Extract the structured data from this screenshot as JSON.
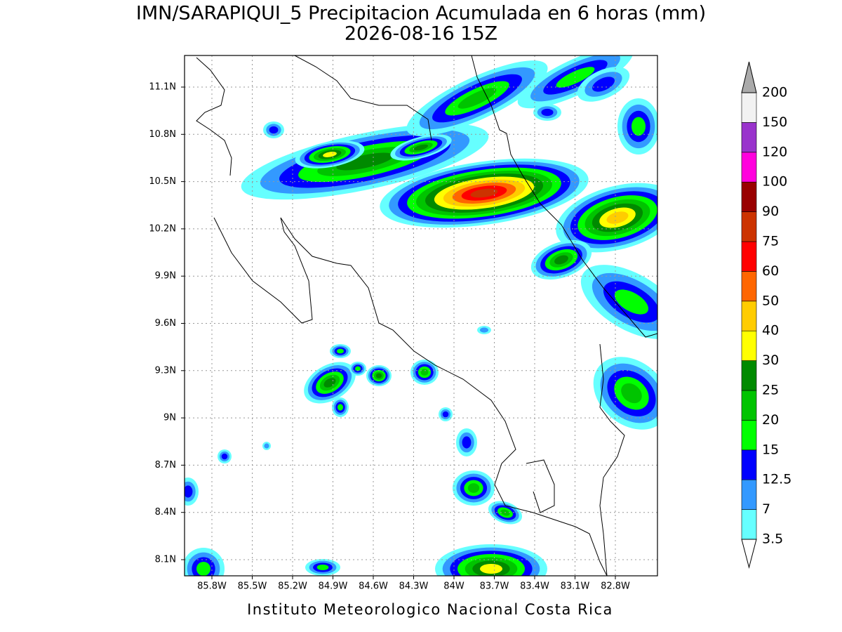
{
  "title": "IMN/SARAPIQUI_5 Precipitacion Acumulada en 6 horas (mm)",
  "subtitle": "2026-08-16 15Z",
  "lat_labels": [
    "11.1N",
    "10.8N",
    "10.5N",
    "10.2N",
    "9.9N",
    "9.6N",
    "9.3N",
    "9N",
    "8.7N",
    "8.4N",
    "8.1N"
  ],
  "lon_labels": [
    "85.8W",
    "85.5W",
    "85.2W",
    "84.9W",
    "84.6W",
    "84.3W",
    "84W",
    "83.7W",
    "83.4W",
    "83.1W",
    "82.8W"
  ],
  "colorbar": {
    "labels": [
      "3.5",
      "7",
      "12.5",
      "15",
      "20",
      "25",
      "30",
      "40",
      "50",
      "60",
      "75",
      "90",
      "100",
      "120",
      "150",
      "200"
    ],
    "colors": [
      "#66ffff",
      "#3399ff",
      "#0000ff",
      "#00ff00",
      "#00c400",
      "#008a00",
      "#ffff00",
      "#ffcc00",
      "#ff6600",
      "#ff0000",
      "#cc3300",
      "#990000",
      "#ff00dd",
      "#9933cc",
      "#f2f2f2"
    ],
    "over_color": "#aaaaaa",
    "under_color": "#ffffff"
  },
  "footer": "Instituto Meteorologico Nacional Costa Rica"
}
